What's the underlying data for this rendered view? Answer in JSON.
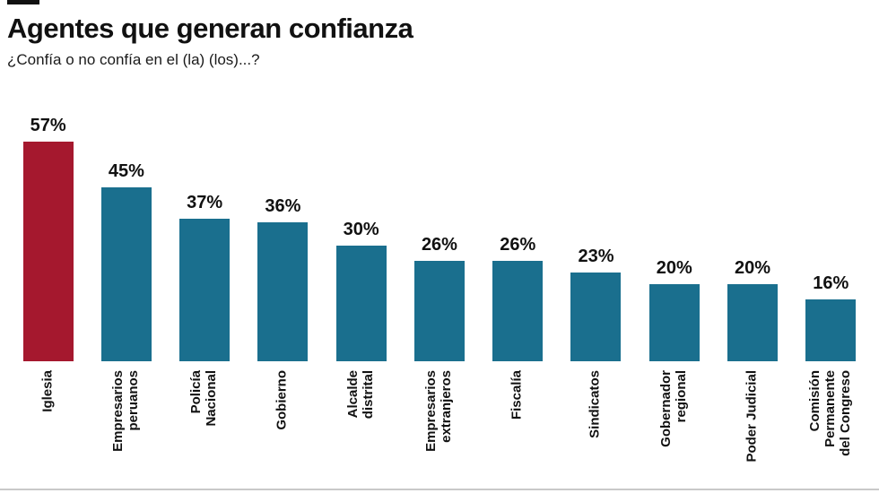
{
  "header": {
    "title": "Agentes que generan confianza",
    "subtitle": "¿Confía o no confía en el (la) (los)...?"
  },
  "chart_data": {
    "type": "bar",
    "title": "Agentes que generan confianza",
    "subtitle": "¿Confía o no confía en el (la) (los)...?",
    "categories": [
      "Iglesia",
      "Empresarios peruanos",
      "Policía Nacional",
      "Gobierno",
      "Alcalde distrital",
      "Empresarios extranjeros",
      "Fiscalía",
      "Sindicatos",
      "Gobernador regional",
      "Poder Judicial",
      "Comisión Permanente del Congreso"
    ],
    "category_lines": [
      [
        "Iglesia"
      ],
      [
        "Empresarios",
        "peruanos"
      ],
      [
        "Policía",
        "Nacional"
      ],
      [
        "Gobierno"
      ],
      [
        "Alcalde",
        "distrital"
      ],
      [
        "Empresarios",
        "extranjeros"
      ],
      [
        "Fiscalía"
      ],
      [
        "Sindicatos"
      ],
      [
        "Gobernador",
        "regional"
      ],
      [
        "Poder Judicial"
      ],
      [
        "Comisión",
        "Permanente",
        "del Congreso"
      ]
    ],
    "values": [
      57,
      45,
      37,
      36,
      30,
      26,
      26,
      23,
      20,
      20,
      16
    ],
    "value_labels": [
      "57%",
      "45%",
      "37%",
      "36%",
      "30%",
      "26%",
      "26%",
      "23%",
      "20%",
      "20%",
      "16%"
    ],
    "ylim": [
      0,
      60
    ],
    "grid": false,
    "legend": false,
    "bar_colors": {
      "highlight": "#a5182e",
      "default": "#1a6f8e"
    },
    "highlight_index": 0
  }
}
